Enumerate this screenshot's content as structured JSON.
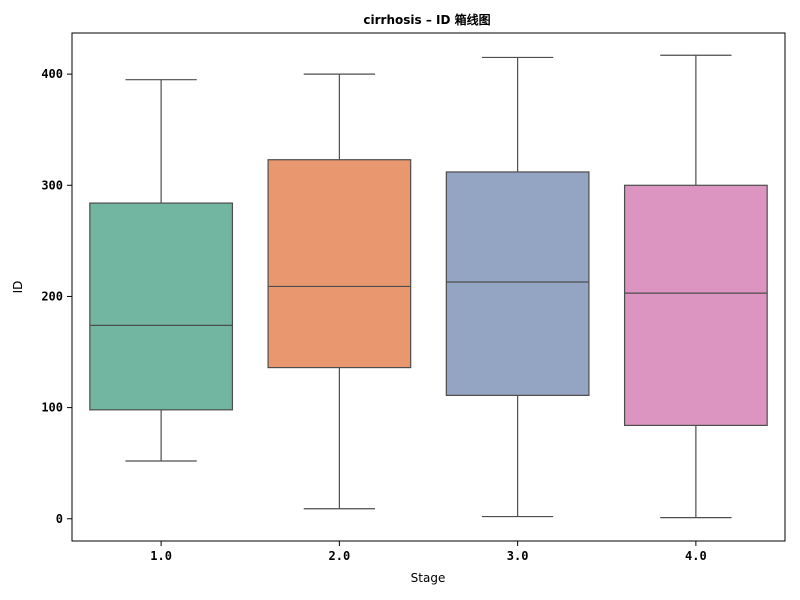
{
  "chart_data": {
    "type": "box",
    "title": "cirrhosis – ID 箱线图",
    "xlabel": "Stage",
    "ylabel": "ID",
    "ylim": [
      -20,
      437
    ],
    "yticks": [
      0,
      100,
      200,
      300,
      400
    ],
    "ytick_labels": [
      "0",
      "100",
      "200",
      "300",
      "400"
    ],
    "categories": [
      "1.0",
      "2.0",
      "3.0",
      "4.0"
    ],
    "grid": false,
    "boxes": [
      {
        "category": "1.0",
        "whisker_low": 52,
        "q1": 98,
        "median": 174,
        "q3": 284,
        "whisker_high": 395,
        "color": "#72b6a1"
      },
      {
        "category": "2.0",
        "whisker_low": 9,
        "q1": 136,
        "median": 209,
        "q3": 323,
        "whisker_high": 400,
        "color": "#e9976f"
      },
      {
        "category": "3.0",
        "whisker_low": 2,
        "q1": 111,
        "median": 213,
        "q3": 312,
        "whisker_high": 415,
        "color": "#94a4c3"
      },
      {
        "category": "4.0",
        "whisker_low": 1,
        "q1": 84,
        "median": 203,
        "q3": 300,
        "whisker_high": 417,
        "color": "#dc95c0"
      }
    ]
  }
}
